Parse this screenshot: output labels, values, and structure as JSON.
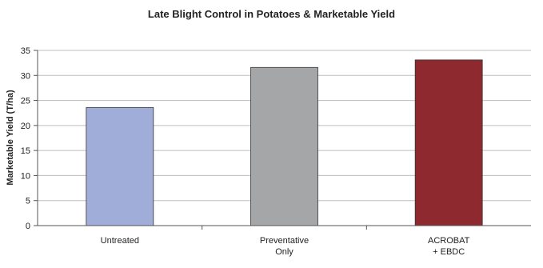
{
  "chart_data": {
    "type": "bar",
    "title": "Late Blight Control in Potatoes & Marketable Yield",
    "ylabel": "Marketable Yield (T/ha)",
    "xlabel": "",
    "ylim": [
      0,
      35
    ],
    "yticks": [
      "0",
      "5",
      "10",
      "15",
      "20",
      "25",
      "30",
      "35"
    ],
    "grid": true,
    "categories": [
      [
        "Untreated"
      ],
      [
        "Preventative",
        "Only"
      ],
      [
        "ACROBAT",
        "+ EBDC"
      ]
    ],
    "values": [
      23.6,
      31.6,
      33.1
    ],
    "colors": [
      "#9fadd8",
      "#a5a6a8",
      "#8e2a2f"
    ]
  }
}
